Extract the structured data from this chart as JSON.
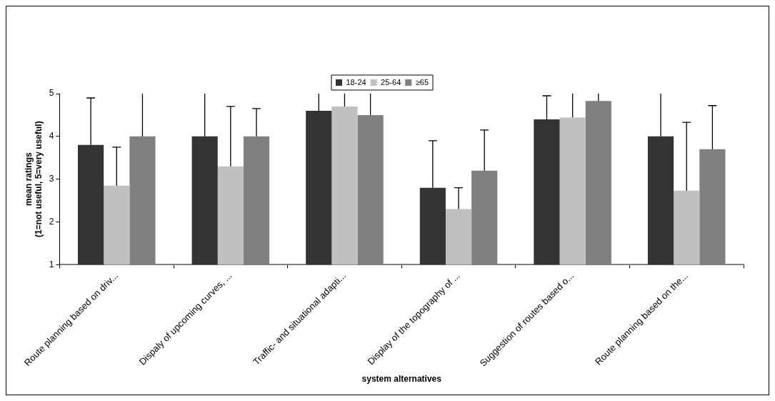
{
  "chart_data": {
    "type": "bar",
    "xlabel": "system alternatives",
    "ylabel": "mean ratings\n(1=not useful, 5=very useful)",
    "categories": [
      "Route planning based on driv...",
      "Dispaly of upcoming curves, ...",
      "Traffic- and situational adapti...",
      "Display of the topography of ...",
      "Suggestion of routes based o...",
      "Route planning based on the..."
    ],
    "series": [
      {
        "name": "18-24",
        "color": "#333333",
        "values": [
          3.8,
          4.0,
          4.6,
          2.8,
          4.4,
          4.0
        ],
        "errors": [
          [
            3.8,
            4.9
          ],
          [
            4.0,
            5.0
          ],
          [
            4.6,
            5.0
          ],
          [
            2.8,
            3.9
          ],
          [
            4.4,
            4.95
          ],
          [
            4.0,
            5.0
          ]
        ]
      },
      {
        "name": "25-64",
        "color": "#c0c0c0",
        "values": [
          2.85,
          3.3,
          4.7,
          2.3,
          4.44,
          2.73
        ],
        "errors": [
          [
            2.85,
            3.75
          ],
          [
            3.3,
            4.7
          ],
          [
            4.7,
            5.0
          ],
          [
            2.3,
            2.8
          ],
          [
            4.44,
            5.0
          ],
          [
            2.73,
            4.33
          ]
        ]
      },
      {
        "name": "≥65",
        "color": "#808080",
        "values": [
          4.0,
          4.0,
          4.5,
          3.2,
          4.83,
          3.7
        ],
        "errors": [
          [
            4.0,
            5.0
          ],
          [
            4.0,
            4.65
          ],
          [
            4.5,
            5.0
          ],
          [
            3.2,
            4.15
          ],
          [
            4.83,
            5.0
          ],
          [
            3.7,
            4.72
          ]
        ]
      }
    ],
    "ylim": [
      1,
      5
    ],
    "yticks": [
      1,
      2,
      3,
      4,
      5
    ],
    "grid": false,
    "legend": "top"
  }
}
